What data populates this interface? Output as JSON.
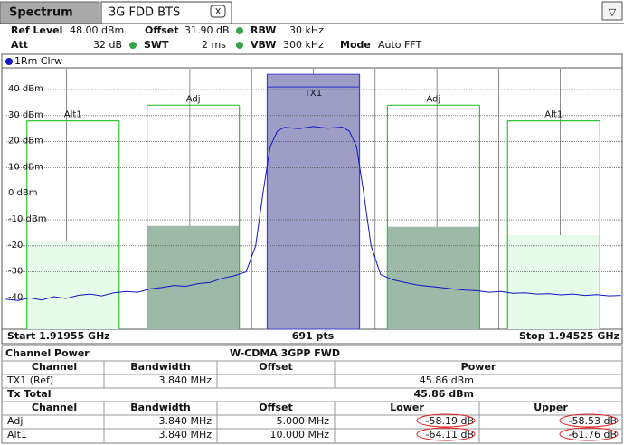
{
  "header": {
    "tabs": [
      "Spectrum",
      "3G FDD BTS"
    ],
    "close": "X",
    "menu": "▽"
  },
  "settings": {
    "ref_level": [
      "Ref Level",
      "48.00 dBm"
    ],
    "offset": [
      "Offset",
      "31.90 dB"
    ],
    "rbw": [
      "RBW",
      "30 kHz"
    ],
    "att": [
      "Att",
      "32 dB"
    ],
    "swt": [
      "SWT",
      "2 ms"
    ],
    "vbw": [
      "VBW",
      "300 kHz"
    ],
    "mode": [
      "Mode",
      "Auto FFT"
    ]
  },
  "chart_data": {
    "type": "line",
    "x": [
      1.9196,
      1.9201,
      1.9206,
      1.9211,
      1.9216,
      1.9221,
      1.9226,
      1.9231,
      1.9236,
      1.9241,
      1.9246,
      1.9251,
      1.9256,
      1.9261,
      1.9266,
      1.9271,
      1.9276,
      1.9281,
      1.9286,
      1.9291,
      1.9296,
      1.93,
      1.9303,
      1.9306,
      1.9309,
      1.9312,
      1.9318,
      1.9324,
      1.933,
      1.9336,
      1.9339,
      1.9342,
      1.9345,
      1.9348,
      1.9352,
      1.9357,
      1.9362,
      1.9367,
      1.9372,
      1.9377,
      1.9382,
      1.9387,
      1.9392,
      1.9397,
      1.9402,
      1.9407,
      1.9412,
      1.9417,
      1.9422,
      1.9427,
      1.9432,
      1.9437,
      1.9442,
      1.9447,
      1.9452
    ],
    "series": [
      {
        "name": "1Rm Clrw",
        "color": "#1414c8",
        "values": [
          -40.5,
          -41,
          -40,
          -40.8,
          -39.5,
          -40.2,
          -39,
          -38.5,
          -39.2,
          -38,
          -37.5,
          -37.8,
          -36.5,
          -36,
          -35.2,
          -35.5,
          -34.5,
          -34,
          -32.5,
          -31.5,
          -30,
          -20,
          0,
          18,
          24,
          25.5,
          25,
          25.8,
          25.2,
          25.6,
          24,
          18,
          0,
          -20,
          -31,
          -33,
          -34,
          -35,
          -35.5,
          -36,
          -36.5,
          -37,
          -37.2,
          -37.8,
          -37.5,
          -38.2,
          -38,
          -38.5,
          -38.4,
          -38.8,
          -38.5,
          -39,
          -38.7,
          -39.2,
          -39
        ]
      }
    ],
    "xlim": [
      1.91955,
      1.94525
    ],
    "ylim": [
      -52,
      48
    ],
    "yticks": [
      {
        "value": 40,
        "label": "40 dBm"
      },
      {
        "value": 30,
        "label": "30 dBm"
      },
      {
        "value": 20,
        "label": "20 dBm"
      },
      {
        "value": 10,
        "label": "10 dBm"
      },
      {
        "value": 0,
        "label": "0 dBm"
      },
      {
        "value": -10,
        "label": "-10 dBm"
      },
      -20,
      -30,
      -40
    ],
    "grid": true,
    "start_label": "Start 1.91955 GHz",
    "points_label": "691 pts",
    "stop_label": "Stop 1.94525 GHz",
    "channels": {
      "names": [
        "Alt1",
        "Adj",
        "TX1",
        "Adj",
        "Alt1"
      ],
      "x": [
        1.9224,
        1.9274,
        1.9324,
        1.9374,
        1.9424
      ],
      "width": [
        0.00384,
        0.00384,
        0.00384,
        0.00384,
        0.00384
      ],
      "power": [
        -18.25,
        -12.33,
        45.86,
        -12.67,
        -15.9
      ],
      "limit": [
        28,
        34,
        41,
        34,
        28
      ],
      "colors": [
        "#e6fbea",
        "#9dbaa9",
        "#9d9dc6",
        "#9dbaa9",
        "#e6fbea"
      ]
    }
  },
  "table": {
    "title": "Channel Power",
    "standard": "W-CDMA 3GPP FWD",
    "header1": [
      "Channel",
      "Bandwidth",
      "Offset",
      "Power"
    ],
    "tx_row": [
      "TX1 (Ref)",
      "3.840 MHz",
      "45.86 dBm"
    ],
    "total_row": [
      "Tx Total",
      "45.86 dBm"
    ],
    "header2": [
      "Channel",
      "Bandwidth",
      "Offset",
      "Lower",
      "Upper"
    ],
    "rows": [
      [
        "Adj",
        "3.840 MHz",
        "5.000 MHz",
        "-58.19 dB",
        "-58.53 dB"
      ],
      [
        "Alt1",
        "3.840 MHz",
        "10.000 MHz",
        "-64.11 dB",
        "-61.76 dB"
      ]
    ]
  }
}
